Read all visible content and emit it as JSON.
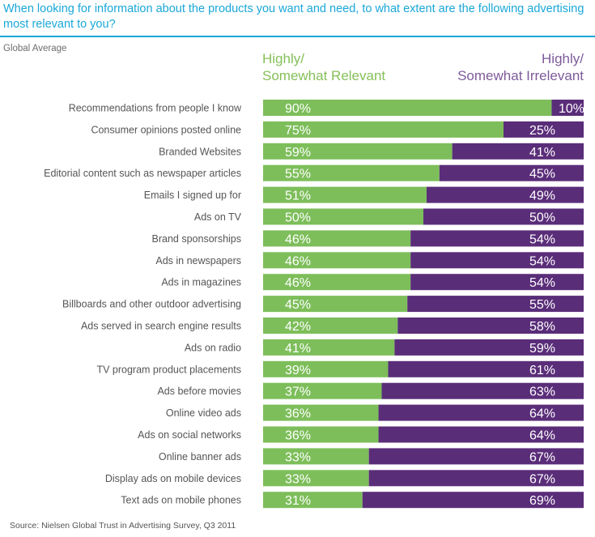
{
  "header": {
    "title": "When looking for information about the products you want and need, to what extent are the following advertising most relevant to you?",
    "subtitle": "Global Average"
  },
  "legend": {
    "relevant_line1": "Highly/",
    "relevant_line2": "Somewhat Relevant",
    "irrelevant_line1": "Highly/",
    "irrelevant_line2": "Somewhat Irrelevant"
  },
  "colors": {
    "relevant": "#7dbe5a",
    "irrelevant": "#5a2d79",
    "title": "#1aa7d8",
    "legend_relevant": "#86c05a",
    "legend_irrelevant": "#7d5b9a"
  },
  "footer": {
    "source": "Source: Nielsen Global Trust in Advertising Survey, Q3 2011"
  },
  "chart_data": {
    "type": "bar",
    "orientation": "horizontal",
    "stacked": true,
    "title": "When looking for information about the products you want and need, to what extent are the following advertising most relevant to you?",
    "subtitle": "Global Average",
    "xlim": [
      0,
      100
    ],
    "unit": "%",
    "grid": false,
    "legend_position": "top",
    "categories": [
      "Recommendations from people I know",
      "Consumer opinions posted online",
      "Branded Websites",
      "Editorial content such as newspaper articles",
      "Emails I signed up for",
      "Ads on TV",
      "Brand sponsorships",
      "Ads in newspapers",
      "Ads in magazines",
      "Billboards and other outdoor advertising",
      "Ads served in search engine results",
      "Ads on radio",
      "TV program product placements",
      "Ads before movies",
      "Online video ads",
      "Ads on social networks",
      "Online banner ads",
      "Display ads on mobile devices",
      "Text ads on mobile phones"
    ],
    "series": [
      {
        "name": "Highly/Somewhat Relevant",
        "color": "#7dbe5a",
        "values": [
          90,
          75,
          59,
          55,
          51,
          50,
          46,
          46,
          46,
          45,
          42,
          41,
          39,
          37,
          36,
          36,
          33,
          33,
          31
        ]
      },
      {
        "name": "Highly/Somewhat Irrelevant",
        "color": "#5a2d79",
        "values": [
          10,
          25,
          41,
          45,
          49,
          50,
          54,
          54,
          54,
          55,
          58,
          59,
          61,
          63,
          64,
          64,
          67,
          67,
          69
        ]
      }
    ],
    "source": "Source: Nielsen Global Trust in Advertising Survey, Q3 2011"
  }
}
